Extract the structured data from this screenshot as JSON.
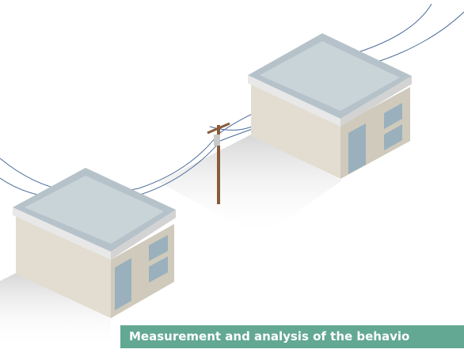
{
  "caption": "Measurement and analysis of the behavio"
}
